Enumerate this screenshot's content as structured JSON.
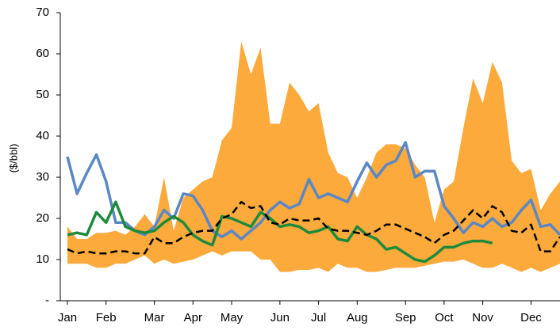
{
  "chart_data": {
    "type": "line",
    "y_label": "($/bbl)",
    "categories": [
      "Jan",
      null,
      null,
      null,
      "Feb",
      null,
      null,
      null,
      null,
      "Mar",
      null,
      null,
      null,
      "Apr",
      null,
      null,
      null,
      "May",
      null,
      null,
      null,
      null,
      "Jun",
      null,
      null,
      null,
      "Jul",
      null,
      null,
      null,
      "Aug",
      null,
      null,
      null,
      null,
      "Sep",
      null,
      null,
      null,
      "Oct",
      null,
      null,
      null,
      "Nov",
      null,
      null,
      null,
      null,
      "Dec",
      null,
      null,
      null
    ],
    "band": {
      "color": "#fbaa3b",
      "high": [
        18,
        15,
        15,
        16.5,
        16.5,
        17,
        16,
        18,
        21,
        18,
        30,
        17,
        25,
        27,
        29,
        30,
        39,
        42,
        63,
        55,
        61.5,
        43,
        43,
        53,
        50,
        46,
        48,
        36,
        31,
        30,
        25,
        30,
        36,
        38,
        38,
        37,
        33,
        30,
        19,
        27,
        29,
        42,
        54,
        48,
        58,
        53,
        34,
        31,
        32,
        22,
        26,
        29
      ],
      "low": [
        9,
        9,
        9,
        8,
        8,
        9,
        9,
        10,
        11,
        9,
        10,
        9,
        9.5,
        10,
        11,
        12,
        11,
        12,
        12,
        12,
        10,
        10,
        7,
        7,
        7.5,
        7.5,
        8,
        7,
        9,
        8,
        8,
        7,
        7,
        7.5,
        8,
        8,
        8,
        8.5,
        9,
        9.5,
        9.5,
        10,
        9,
        8,
        8,
        9,
        8,
        7,
        8,
        7,
        8,
        9
      ]
    },
    "series": [
      {
        "color": "#5b87c5",
        "values": [
          35,
          26,
          31,
          35.5,
          29,
          19,
          19,
          17,
          16,
          18,
          22,
          20,
          26,
          25.5,
          22,
          17,
          15.5,
          17,
          15,
          17,
          19,
          22,
          24,
          22.5,
          23.5,
          29.5,
          25,
          26,
          25,
          24,
          29,
          33.5,
          30,
          33,
          34,
          38.5,
          30,
          31.5,
          31.5,
          23,
          20,
          16.5,
          19,
          18,
          20,
          18,
          19,
          22,
          24.5,
          18,
          18.5,
          16
        ]
      },
      {
        "color": "#1e8a3c",
        "values": [
          16,
          16.5,
          16,
          21.5,
          19,
          24,
          18,
          17,
          16.5,
          17,
          19,
          20.5,
          19,
          16,
          14.5,
          13.5,
          20.5,
          20,
          19,
          18,
          21.5,
          20,
          18,
          18.5,
          18,
          16.5,
          17,
          18,
          15,
          14.5,
          18,
          16,
          15,
          12.5,
          13,
          11.5,
          10,
          9.5,
          11,
          13,
          13,
          14,
          14.5,
          14.5,
          14,
          null,
          null,
          null,
          null,
          null,
          null,
          null
        ]
      },
      {
        "color": "#000000",
        "dashed": true,
        "values": [
          12.5,
          11.5,
          12,
          11.5,
          11.5,
          12,
          12,
          11.5,
          11.5,
          15.5,
          14,
          14,
          15.5,
          16.5,
          17,
          17,
          20,
          21,
          24,
          22.5,
          23,
          19,
          18.5,
          20,
          19.5,
          19.5,
          20,
          17.5,
          17,
          17,
          16.5,
          16,
          17,
          18.5,
          18.5,
          17.5,
          16.5,
          15.5,
          14,
          16,
          17,
          19.5,
          22,
          20,
          23,
          21.5,
          17,
          16.5,
          18.5,
          12,
          12,
          15.5
        ]
      }
    ],
    "ylim": [
      0,
      70
    ],
    "yticks": [
      {
        "value": 0,
        "label": "-"
      },
      10,
      20,
      30,
      40,
      50,
      60,
      70
    ]
  }
}
